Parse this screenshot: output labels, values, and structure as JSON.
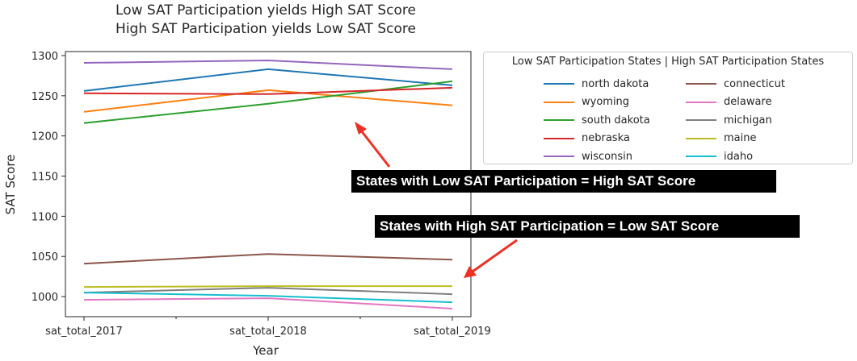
{
  "chart_data": {
    "type": "line",
    "title_lines": [
      "Low SAT Participation yields High SAT Score",
      "High SAT Participation yields Low SAT Score"
    ],
    "xlabel": "Year",
    "ylabel": "SAT Score",
    "categories": [
      "sat_total_2017",
      "sat_total_2018",
      "sat_total_2019"
    ],
    "ylim": [
      975,
      1305
    ],
    "yticks": [
      1000,
      1050,
      1100,
      1150,
      1200,
      1250,
      1300
    ],
    "grid": false,
    "legend": {
      "title": "Low SAT Participation States | High SAT Participation States",
      "placement": "outside-right-top"
    },
    "series": [
      {
        "name": "north dakota",
        "color": "#1f77b4",
        "values": [
          1256,
          1283,
          1263
        ]
      },
      {
        "name": "wyoming",
        "color": "#ff7f0e",
        "values": [
          1230,
          1257,
          1238
        ]
      },
      {
        "name": "south dakota",
        "color": "#2ca02c",
        "values": [
          1216,
          1240,
          1268
        ]
      },
      {
        "name": "nebraska",
        "color": "#d62728",
        "values": [
          1253,
          1252,
          1260
        ]
      },
      {
        "name": "wisconsin",
        "color": "#9467bd",
        "values": [
          1291,
          1294,
          1283
        ]
      },
      {
        "name": "connecticut",
        "color": "#8c564b",
        "values": [
          1041,
          1053,
          1046
        ]
      },
      {
        "name": "delaware",
        "color": "#e377c2",
        "values": [
          996,
          998,
          985
        ]
      },
      {
        "name": "michigan",
        "color": "#7f7f7f",
        "values": [
          1005,
          1011,
          1003
        ]
      },
      {
        "name": "maine",
        "color": "#bcbd22",
        "values": [
          1012,
          1013,
          1013
        ]
      },
      {
        "name": "idaho",
        "color": "#17becf",
        "values": [
          1005,
          1001,
          993
        ]
      }
    ],
    "annotations": [
      {
        "text": "States with Low SAT Participation = High SAT Score",
        "arrow_color": "#ee3124"
      },
      {
        "text": "States with High SAT Participation = Low SAT Score",
        "arrow_color": "#ee3124"
      }
    ]
  }
}
